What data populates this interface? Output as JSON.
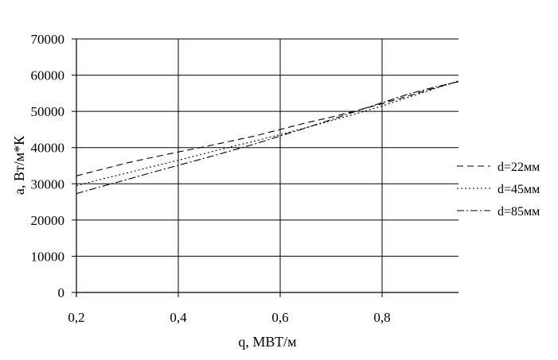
{
  "chart_data": {
    "type": "line",
    "title": "",
    "xlabel": "q, МВТ/м",
    "ylabel": "a, Вт/м*К",
    "xlim": [
      0.2,
      0.95
    ],
    "ylim": [
      0,
      70000
    ],
    "xticks": [
      0.2,
      0.4,
      0.6,
      0.8
    ],
    "xtick_labels": [
      "0,2",
      "0,4",
      "0,6",
      "0,8"
    ],
    "yticks": [
      0,
      10000,
      20000,
      30000,
      40000,
      50000,
      60000,
      70000
    ],
    "ytick_labels": [
      "0",
      "10000",
      "20000",
      "30000",
      "40000",
      "50000",
      "60000",
      "70000"
    ],
    "grid": true,
    "legend_position": "right",
    "series": [
      {
        "name": "d=22мм",
        "dash": "8,5",
        "x": [
          0.2,
          0.25,
          0.3,
          0.35,
          0.4,
          0.45,
          0.5,
          0.55,
          0.6,
          0.65,
          0.7,
          0.75,
          0.8,
          0.85,
          0.9,
          0.95
        ],
        "y": [
          32200,
          34000,
          35800,
          37300,
          38800,
          40200,
          41700,
          43200,
          45000,
          46800,
          48400,
          50200,
          52100,
          54200,
          56300,
          58300
        ]
      },
      {
        "name": "d=45мм",
        "dash": "2,3",
        "x": [
          0.2,
          0.25,
          0.3,
          0.35,
          0.4,
          0.45,
          0.5,
          0.55,
          0.6,
          0.65,
          0.7,
          0.75,
          0.8,
          0.85,
          0.9,
          0.95
        ],
        "y": [
          29500,
          31300,
          33000,
          34800,
          36500,
          38300,
          40100,
          41800,
          43600,
          45500,
          47400,
          49400,
          51500,
          53800,
          56100,
          58400
        ]
      },
      {
        "name": "d=85мм",
        "dash": "9,3,2,3",
        "x": [
          0.2,
          0.25,
          0.3,
          0.35,
          0.4,
          0.45,
          0.5,
          0.55,
          0.6,
          0.65,
          0.7,
          0.75,
          0.8,
          0.85,
          0.9,
          0.95
        ],
        "y": [
          27300,
          29300,
          31200,
          33200,
          35100,
          37000,
          39000,
          41000,
          43200,
          45400,
          47700,
          50100,
          52400,
          54700,
          56600,
          58200
        ]
      }
    ]
  }
}
